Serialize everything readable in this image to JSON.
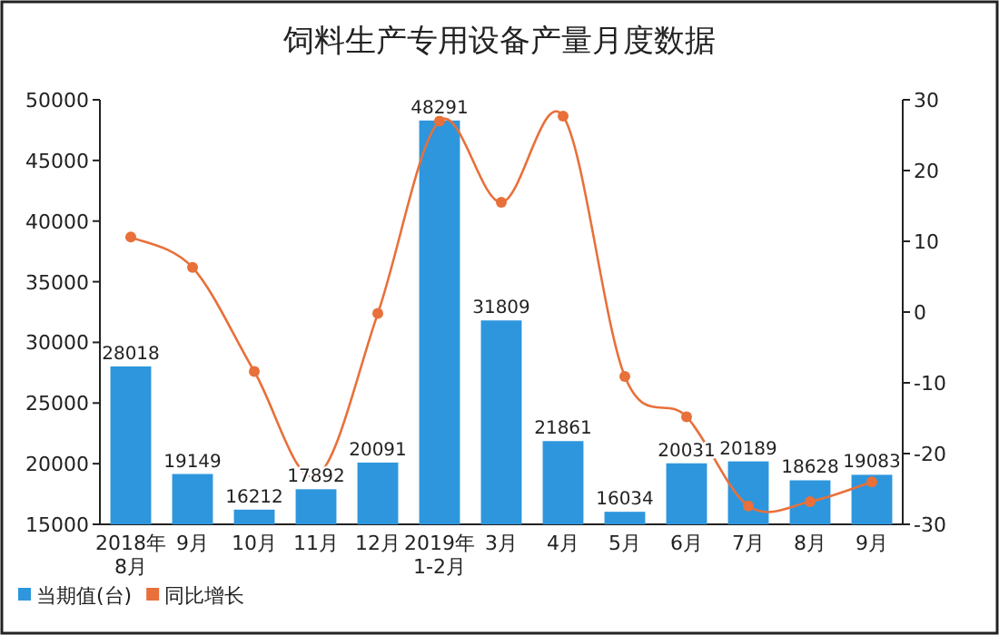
{
  "chart_data": {
    "type": "bar",
    "title": "饲料生产专用设备产量月度数据",
    "categories": [
      "2018年8月",
      "9月",
      "10月",
      "11月",
      "12月",
      "2019年1-2月",
      "3月",
      "4月",
      "5月",
      "6月",
      "7月",
      "8月",
      "9月"
    ],
    "series": [
      {
        "name": "当期值(台)",
        "color": "#2e96dd",
        "values": [
          28018,
          19149,
          16212,
          17892,
          20091,
          48291,
          31809,
          21861,
          16034,
          20031,
          20189,
          18628,
          19083
        ],
        "data_labels": true
      },
      {
        "name": "同比增长",
        "type": "line",
        "axis": "y2",
        "color": "#e8703a",
        "marker": "circle",
        "values": [
          10.6,
          6.3,
          -8.4,
          -23.2,
          -0.2,
          27.0,
          15.5,
          27.7,
          -9.1,
          -14.8,
          -27.4,
          -26.8,
          -24.0
        ]
      }
    ],
    "ylim": [
      15000,
      50000
    ],
    "yticks": [
      15000,
      20000,
      25000,
      30000,
      35000,
      40000,
      45000,
      50000
    ],
    "y2lim": [
      -30,
      30
    ],
    "y2ticks": [
      -30,
      -20,
      -10,
      0,
      10,
      20,
      30
    ],
    "legend": "bottom left",
    "grid": false
  }
}
